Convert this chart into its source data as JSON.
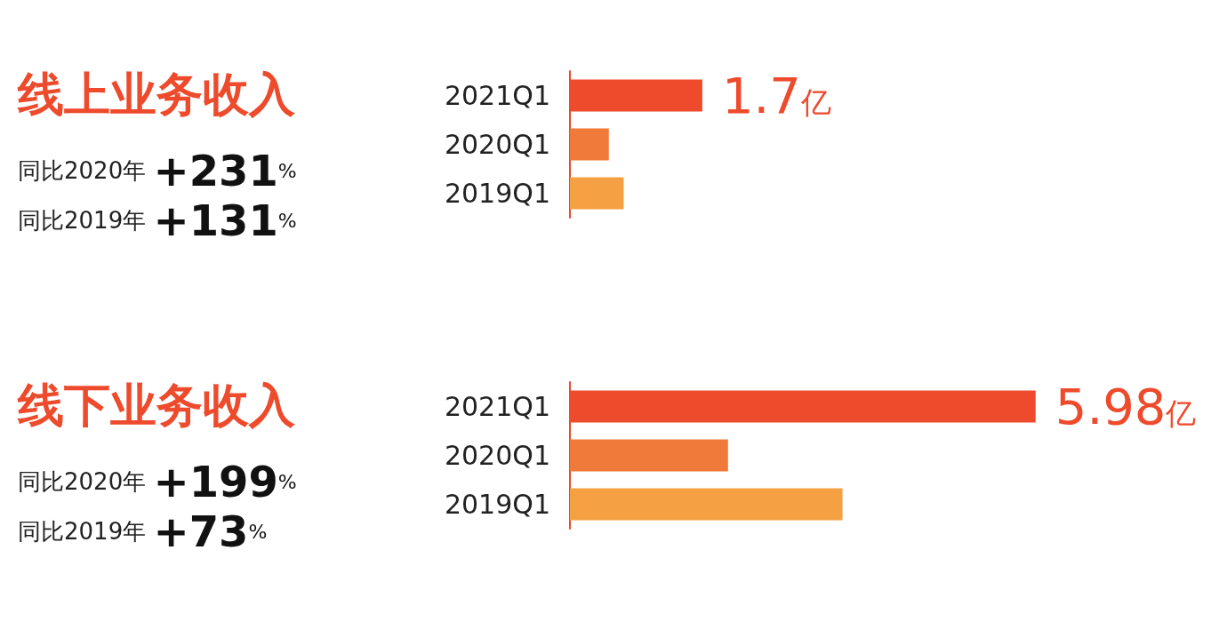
{
  "chart_data": [
    {
      "type": "bar",
      "orientation": "horizontal",
      "title": "线上业务收入",
      "annotations": [
        "同比2020年 +231%",
        "同比2019年 +131%"
      ],
      "categories": [
        "2021Q1",
        "2020Q1",
        "2019Q1"
      ],
      "values": [
        1.7,
        0.5,
        0.69
      ],
      "colors": [
        "#ee4a2c",
        "#f07a3a",
        "#f5a043"
      ],
      "value_labels": [
        "1.7亿",
        null,
        null
      ]
    },
    {
      "type": "bar",
      "orientation": "horizontal",
      "title": "线下业务收入",
      "annotations": [
        "同比2020年 +199%",
        "同比2019年 +73%"
      ],
      "categories": [
        "2021Q1",
        "2020Q1",
        "2019Q1"
      ],
      "values": [
        5.98,
        2.03,
        3.5
      ],
      "colors": [
        "#ee4a2c",
        "#f07a3a",
        "#f5a043"
      ],
      "value_labels": [
        "5.98亿",
        null,
        null
      ]
    }
  ]
}
